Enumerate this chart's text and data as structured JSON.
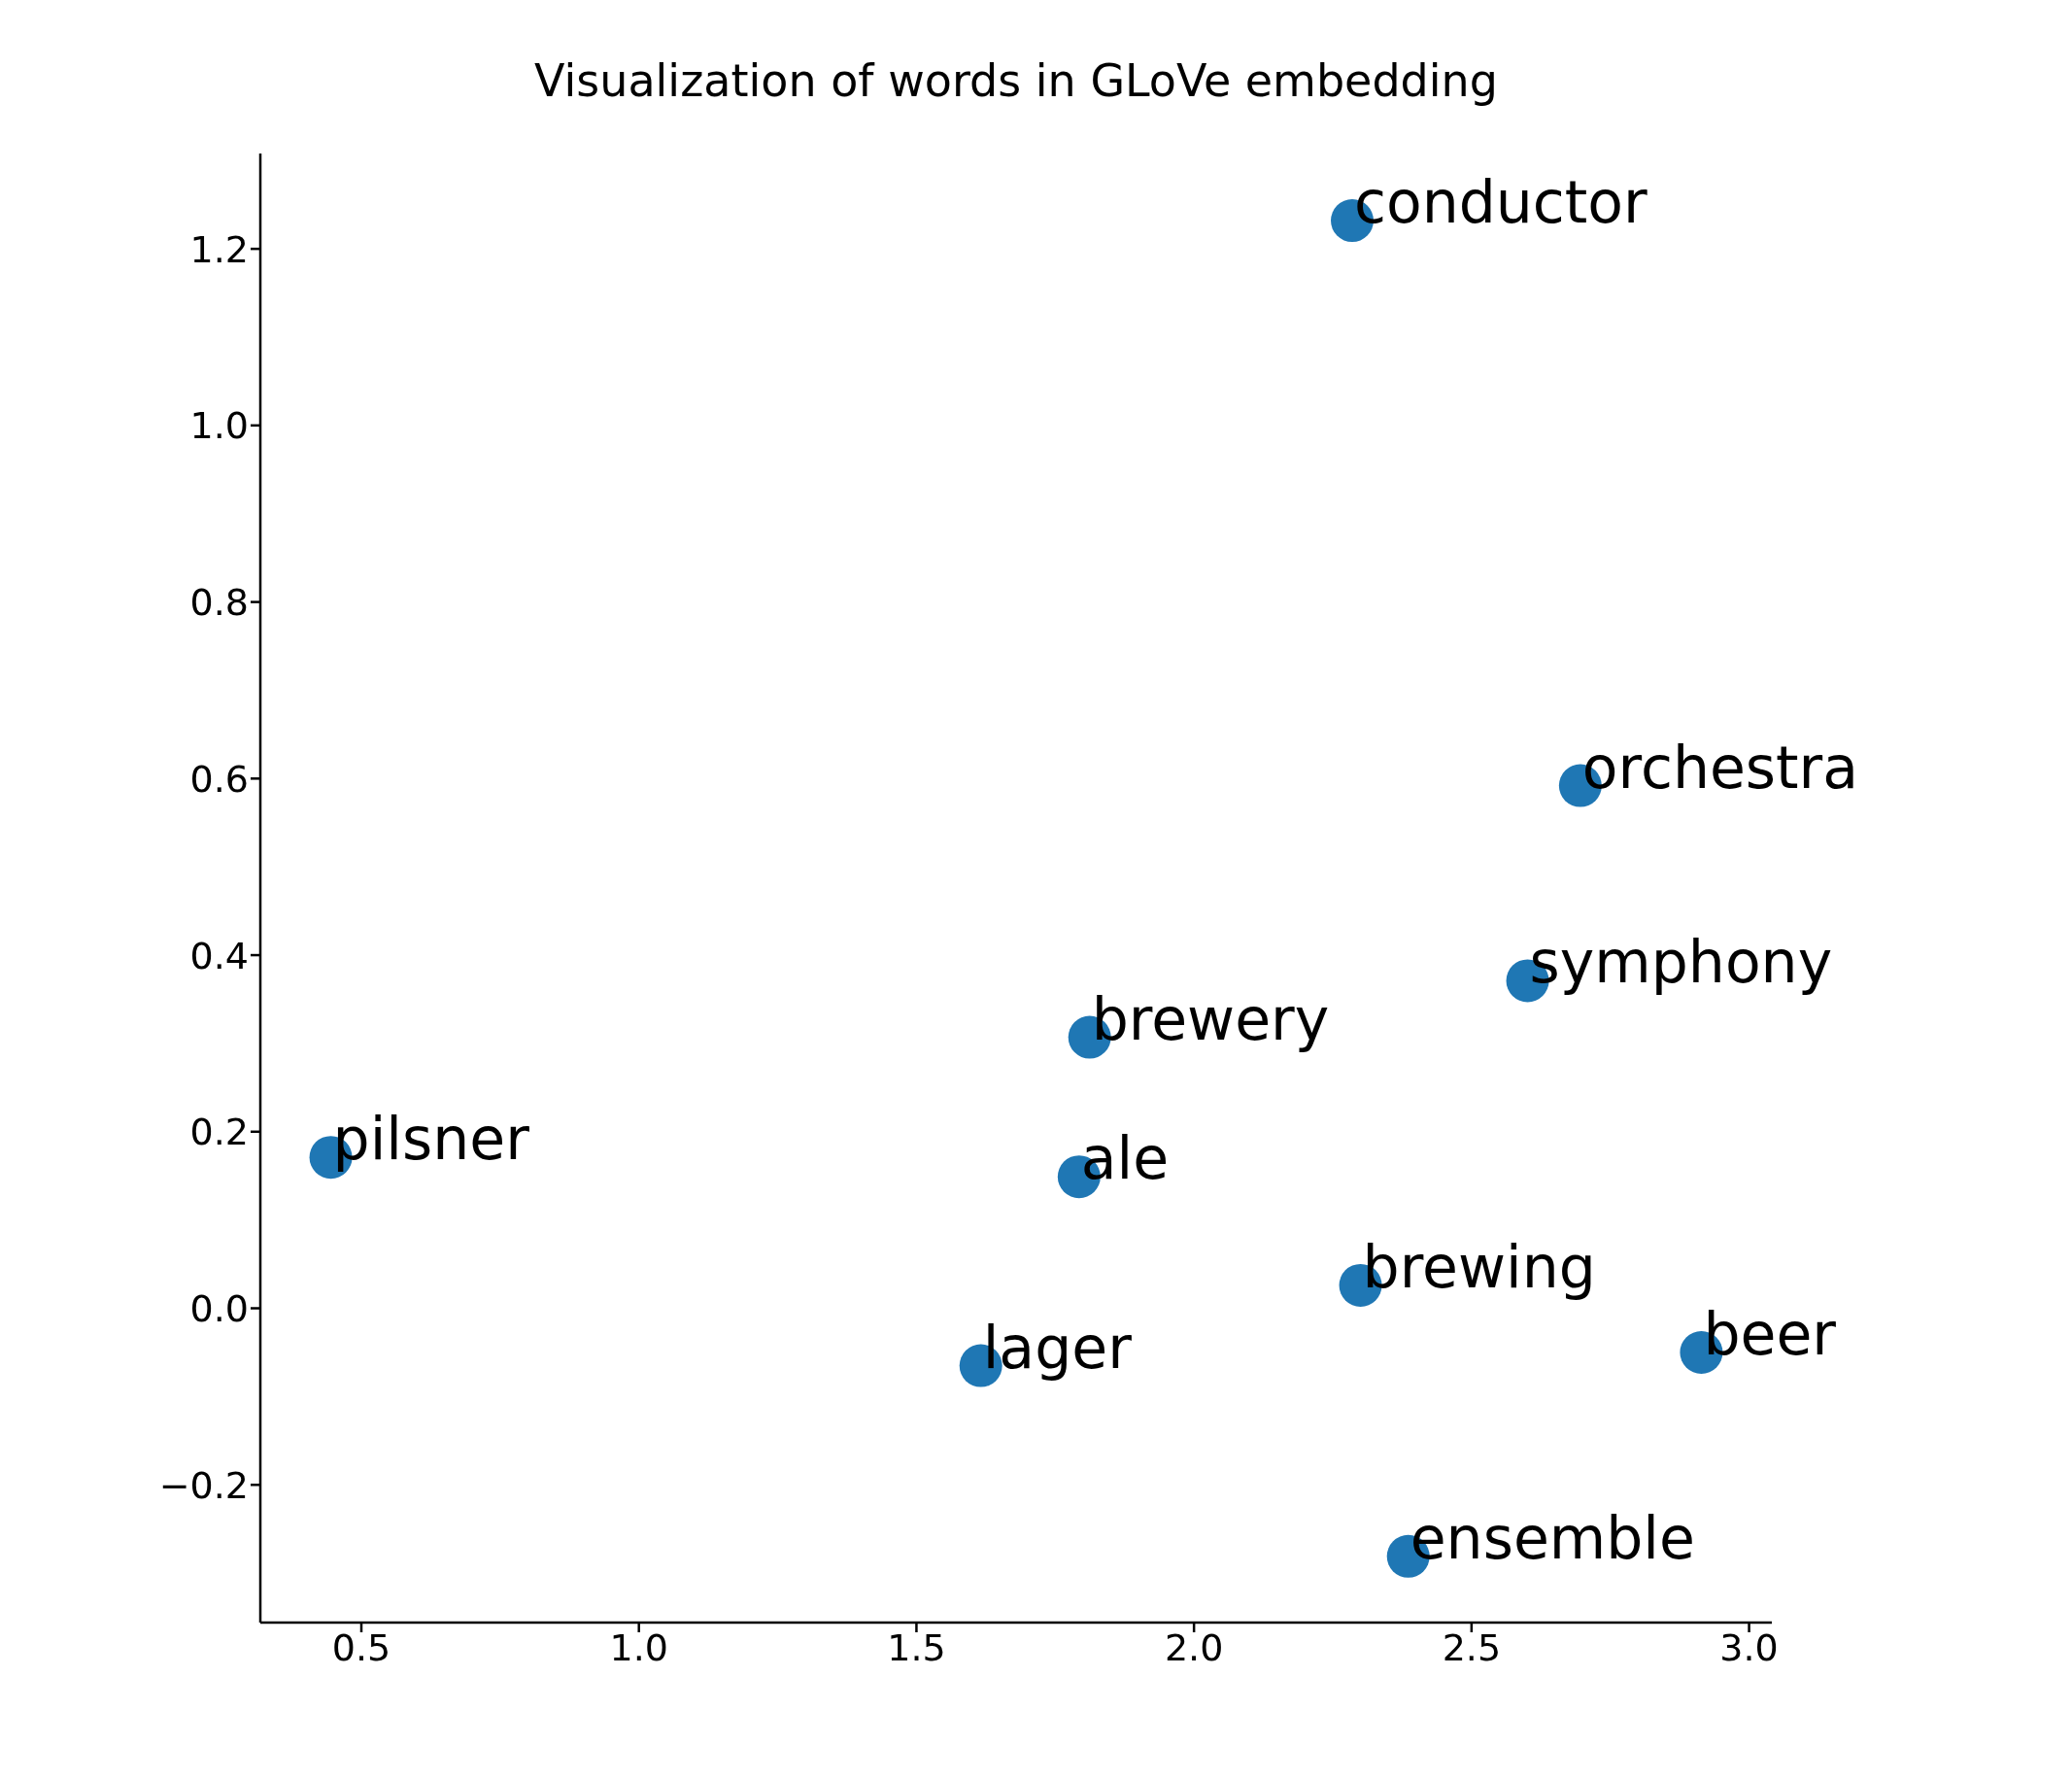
{
  "chart_data": {
    "type": "scatter",
    "title": "Visualization of words in GLoVe embedding",
    "x": [
      2.285,
      2.696,
      2.601,
      1.812,
      0.445,
      1.793,
      2.3,
      2.914,
      1.616,
      2.386
    ],
    "series": [
      {
        "color": "#1f77b4",
        "values": [
          1.232,
          0.592,
          0.371,
          0.307,
          0.171,
          0.149,
          0.026,
          -0.05,
          -0.065,
          -0.281
        ]
      }
    ],
    "xlim": [
      0.318,
      3.041
    ],
    "ylim": [
      -0.356,
      1.308
    ],
    "xticks": [
      {
        "value": 0.5,
        "label": "0.5"
      },
      {
        "value": 1,
        "label": "1.0"
      },
      {
        "value": 1.5,
        "label": "1.5"
      },
      {
        "value": 2,
        "label": "2.0"
      },
      {
        "value": 2.5,
        "label": "2.5"
      },
      {
        "value": 3,
        "label": "3.0"
      }
    ],
    "yticks": [
      {
        "value": -0.2,
        "label": "−0.2"
      },
      {
        "value": 0,
        "label": "0.0"
      },
      {
        "value": 0.2,
        "label": "0.2"
      },
      {
        "value": 0.4,
        "label": "0.4"
      },
      {
        "value": 0.6,
        "label": "0.6"
      },
      {
        "value": 0.8,
        "label": "0.8"
      },
      {
        "value": 1,
        "label": "1.0"
      },
      {
        "value": 1.2,
        "label": "1.2"
      }
    ],
    "annotations": [
      {
        "text": "conductor",
        "x": 2.285,
        "y": 1.232
      },
      {
        "text": "orchestra",
        "x": 2.696,
        "y": 0.592
      },
      {
        "text": "symphony",
        "x": 2.601,
        "y": 0.371
      },
      {
        "text": "brewery",
        "x": 1.812,
        "y": 0.307
      },
      {
        "text": "pilsner",
        "x": 0.445,
        "y": 0.171
      },
      {
        "text": "ale",
        "x": 1.793,
        "y": 0.149
      },
      {
        "text": "brewing",
        "x": 2.3,
        "y": 0.026
      },
      {
        "text": "beer",
        "x": 2.914,
        "y": -0.05
      },
      {
        "text": "lager",
        "x": 1.616,
        "y": -0.065
      },
      {
        "text": "ensemble",
        "x": 2.386,
        "y": -0.281
      }
    ],
    "marker": "circle",
    "grid": false,
    "legend": false
  }
}
